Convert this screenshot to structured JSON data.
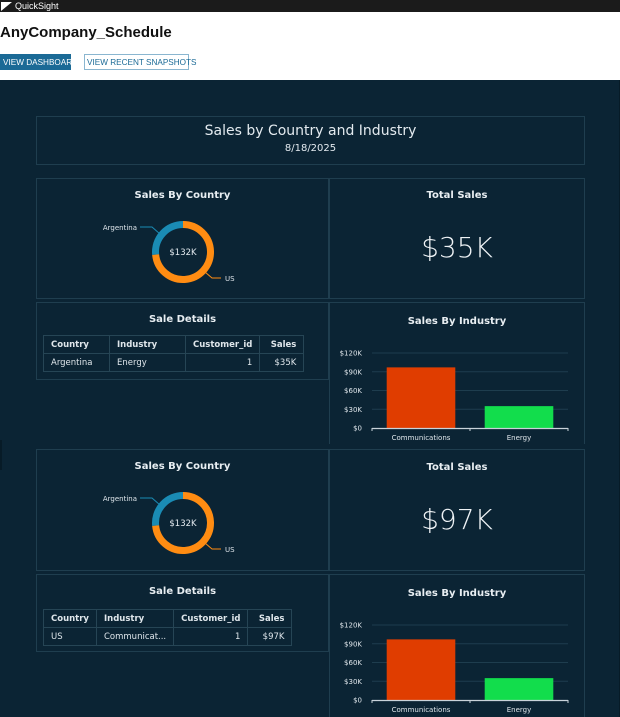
{
  "app": {
    "name": "QuickSight",
    "logo_icon": "quicksight-logo-icon"
  },
  "page": {
    "title": "AnyCompany_Schedule",
    "buttons": {
      "view_dashboard": "VIEW DASHBOARD",
      "view_recent_snapshots": "VIEW RECENT SNAPSHOTS"
    }
  },
  "colors": {
    "background": "#0b2434",
    "panel_border": "#1f3e4f",
    "primary_button": "#1b6a96",
    "donut_argentina": "#1a8bb4",
    "donut_us": "#ff8c12",
    "bar_communications": "#e03d00",
    "bar_energy": "#12dd4c"
  },
  "header": {
    "title": "Sales by Country and Industry",
    "date": "8/18/2025"
  },
  "sections": [
    {
      "sales_by_country": {
        "title": "Sales By Country",
        "center_label": "$132K",
        "labels": [
          "Argentina",
          "US"
        ]
      },
      "total_sales": {
        "title": "Total Sales",
        "value": "$35K"
      },
      "sale_details": {
        "title": "Sale Details",
        "columns": [
          "Country",
          "Industry",
          "Customer_id",
          "Sales"
        ],
        "rows": [
          [
            "Argentina",
            "Energy",
            "1",
            "$35K"
          ]
        ]
      },
      "sales_by_industry": {
        "title": "Sales By Industry"
      }
    },
    {
      "sales_by_country": {
        "title": "Sales By Country",
        "center_label": "$132K",
        "labels": [
          "Argentina",
          "US"
        ]
      },
      "total_sales": {
        "title": "Total Sales",
        "value": "$97K"
      },
      "sale_details": {
        "title": "Sale Details",
        "columns": [
          "Country",
          "Industry",
          "Customer_id",
          "Sales"
        ],
        "rows": [
          [
            "US",
            "Communicat...",
            "1",
            "$97K"
          ]
        ]
      },
      "sales_by_industry": {
        "title": "Sales By Industry"
      }
    }
  ],
  "chart_data": [
    {
      "type": "pie",
      "title": "Sales By Country",
      "donut": true,
      "center_label": "$132K",
      "categories": [
        "Argentina",
        "US"
      ],
      "values": [
        35,
        97
      ],
      "unit": "$K",
      "colors": [
        "#1a8bb4",
        "#ff8c12"
      ]
    },
    {
      "type": "bar",
      "title": "Sales By Industry",
      "categories": [
        "Communications",
        "Energy"
      ],
      "values": [
        97,
        35
      ],
      "unit": "$K",
      "colors": [
        "#e03d00",
        "#12dd4c"
      ],
      "xlabel": "",
      "ylabel": "",
      "ylim": [
        0,
        120
      ],
      "yticks": [
        "$0",
        "$30K",
        "$60K",
        "$90K",
        "$120K"
      ],
      "ytick_values": [
        0,
        30,
        60,
        90,
        120
      ],
      "grid": true
    },
    {
      "type": "pie",
      "title": "Sales By Country",
      "donut": true,
      "center_label": "$132K",
      "categories": [
        "Argentina",
        "US"
      ],
      "values": [
        35,
        97
      ],
      "unit": "$K",
      "colors": [
        "#1a8bb4",
        "#ff8c12"
      ]
    },
    {
      "type": "bar",
      "title": "Sales By Industry",
      "categories": [
        "Communications",
        "Energy"
      ],
      "values": [
        97,
        35
      ],
      "unit": "$K",
      "colors": [
        "#e03d00",
        "#12dd4c"
      ],
      "xlabel": "",
      "ylabel": "",
      "ylim": [
        0,
        120
      ],
      "yticks": [
        "$0",
        "$30K",
        "$60K",
        "$90K",
        "$120K"
      ],
      "ytick_values": [
        0,
        30,
        60,
        90,
        120
      ],
      "grid": true
    }
  ]
}
